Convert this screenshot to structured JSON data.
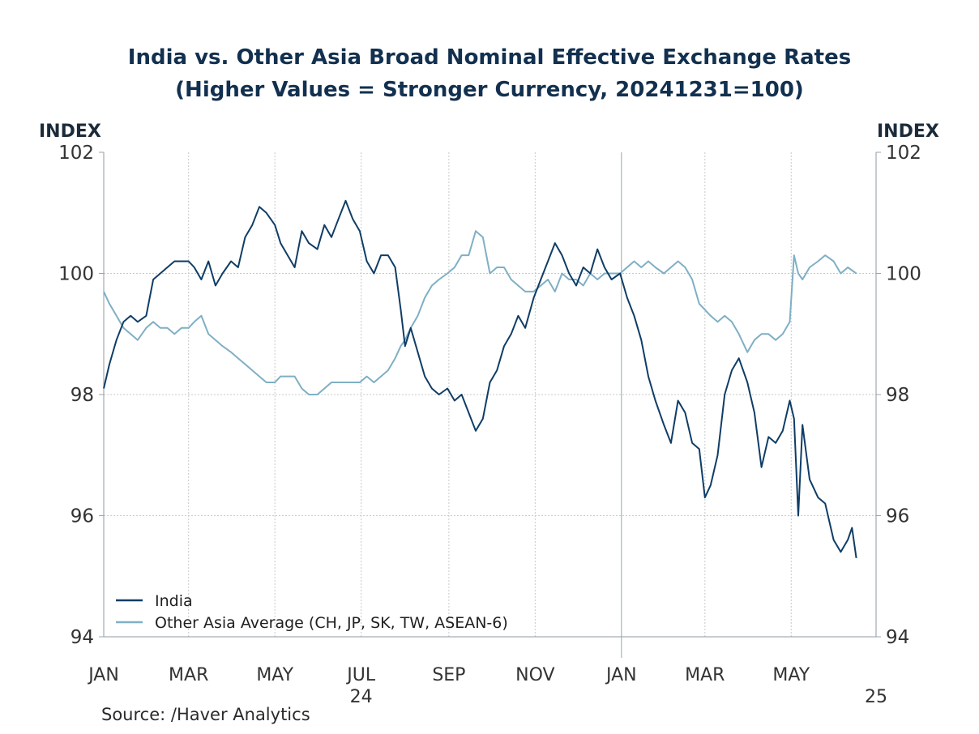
{
  "chart_data": {
    "type": "line",
    "title": "India vs. Other Asia Broad Nominal Effective Exchange Rates",
    "subtitle": "(Higher Values = Stronger Currency, 20241231=100)",
    "ylabel_left": "INDEX",
    "ylabel_right": "INDEX",
    "ylim": [
      94,
      102
    ],
    "y_ticks": [
      "94",
      "96",
      "98",
      "100",
      "102"
    ],
    "x_range": [
      "2024-01-01",
      "2025-06-30"
    ],
    "x_ticks": [
      {
        "date": "2024-01-01",
        "label": "JAN"
      },
      {
        "date": "2024-03-01",
        "label": "MAR"
      },
      {
        "date": "2024-05-01",
        "label": "MAY"
      },
      {
        "date": "2024-07-01",
        "label": "JUL"
      },
      {
        "date": "2024-09-01",
        "label": "SEP"
      },
      {
        "date": "2024-11-01",
        "label": "NOV"
      },
      {
        "date": "2025-01-01",
        "label": "JAN"
      },
      {
        "date": "2025-03-01",
        "label": "MAR"
      },
      {
        "date": "2025-05-01",
        "label": "MAY"
      }
    ],
    "year_labels": [
      {
        "date": "2024-07-01",
        "label": "24"
      },
      {
        "date": "2025-06-30",
        "label": "25"
      }
    ],
    "year_divider": "2025-01-01",
    "grid": true,
    "legend_position": "bottom-left",
    "series": [
      {
        "name": "India",
        "color": "#0f3d66",
        "points": [
          [
            "2024-01-01",
            98.1
          ],
          [
            "2024-01-05",
            98.5
          ],
          [
            "2024-01-10",
            98.9
          ],
          [
            "2024-01-15",
            99.2
          ],
          [
            "2024-01-20",
            99.3
          ],
          [
            "2024-01-25",
            99.2
          ],
          [
            "2024-01-31",
            99.3
          ],
          [
            "2024-02-05",
            99.9
          ],
          [
            "2024-02-10",
            100.0
          ],
          [
            "2024-02-15",
            100.1
          ],
          [
            "2024-02-20",
            100.2
          ],
          [
            "2024-02-25",
            100.2
          ],
          [
            "2024-03-01",
            100.2
          ],
          [
            "2024-03-05",
            100.1
          ],
          [
            "2024-03-10",
            99.9
          ],
          [
            "2024-03-15",
            100.2
          ],
          [
            "2024-03-20",
            99.8
          ],
          [
            "2024-03-25",
            100.0
          ],
          [
            "2024-03-31",
            100.2
          ],
          [
            "2024-04-05",
            100.1
          ],
          [
            "2024-04-10",
            100.6
          ],
          [
            "2024-04-15",
            100.8
          ],
          [
            "2024-04-20",
            101.1
          ],
          [
            "2024-04-25",
            101.0
          ],
          [
            "2024-05-01",
            100.8
          ],
          [
            "2024-05-05",
            100.5
          ],
          [
            "2024-05-10",
            100.3
          ],
          [
            "2024-05-15",
            100.1
          ],
          [
            "2024-05-20",
            100.7
          ],
          [
            "2024-05-25",
            100.5
          ],
          [
            "2024-05-31",
            100.4
          ],
          [
            "2024-06-05",
            100.8
          ],
          [
            "2024-06-10",
            100.6
          ],
          [
            "2024-06-15",
            100.9
          ],
          [
            "2024-06-20",
            101.2
          ],
          [
            "2024-06-25",
            100.9
          ],
          [
            "2024-06-30",
            100.7
          ],
          [
            "2024-07-05",
            100.2
          ],
          [
            "2024-07-10",
            100.0
          ],
          [
            "2024-07-15",
            100.3
          ],
          [
            "2024-07-20",
            100.3
          ],
          [
            "2024-07-25",
            100.1
          ],
          [
            "2024-07-29",
            99.4
          ],
          [
            "2024-08-01",
            98.8
          ],
          [
            "2024-08-05",
            99.1
          ],
          [
            "2024-08-10",
            98.7
          ],
          [
            "2024-08-15",
            98.3
          ],
          [
            "2024-08-20",
            98.1
          ],
          [
            "2024-08-25",
            98.0
          ],
          [
            "2024-08-31",
            98.1
          ],
          [
            "2024-09-05",
            97.9
          ],
          [
            "2024-09-10",
            98.0
          ],
          [
            "2024-09-15",
            97.7
          ],
          [
            "2024-09-20",
            97.4
          ],
          [
            "2024-09-25",
            97.6
          ],
          [
            "2024-09-30",
            98.2
          ],
          [
            "2024-10-05",
            98.4
          ],
          [
            "2024-10-10",
            98.8
          ],
          [
            "2024-10-15",
            99.0
          ],
          [
            "2024-10-20",
            99.3
          ],
          [
            "2024-10-25",
            99.1
          ],
          [
            "2024-10-31",
            99.6
          ],
          [
            "2024-11-05",
            99.9
          ],
          [
            "2024-11-10",
            100.2
          ],
          [
            "2024-11-15",
            100.5
          ],
          [
            "2024-11-20",
            100.3
          ],
          [
            "2024-11-25",
            100.0
          ],
          [
            "2024-11-30",
            99.8
          ],
          [
            "2024-12-05",
            100.1
          ],
          [
            "2024-12-10",
            100.0
          ],
          [
            "2024-12-15",
            100.4
          ],
          [
            "2024-12-20",
            100.1
          ],
          [
            "2024-12-25",
            99.9
          ],
          [
            "2024-12-31",
            100.0
          ],
          [
            "2025-01-05",
            99.6
          ],
          [
            "2025-01-10",
            99.3
          ],
          [
            "2025-01-15",
            98.9
          ],
          [
            "2025-01-20",
            98.3
          ],
          [
            "2025-01-25",
            97.9
          ],
          [
            "2025-01-31",
            97.5
          ],
          [
            "2025-02-05",
            97.2
          ],
          [
            "2025-02-10",
            97.9
          ],
          [
            "2025-02-15",
            97.7
          ],
          [
            "2025-02-20",
            97.2
          ],
          [
            "2025-02-25",
            97.1
          ],
          [
            "2025-03-01",
            96.3
          ],
          [
            "2025-03-05",
            96.5
          ],
          [
            "2025-03-10",
            97.0
          ],
          [
            "2025-03-15",
            98.0
          ],
          [
            "2025-03-20",
            98.4
          ],
          [
            "2025-03-25",
            98.6
          ],
          [
            "2025-03-31",
            98.2
          ],
          [
            "2025-04-05",
            97.7
          ],
          [
            "2025-04-10",
            96.8
          ],
          [
            "2025-04-15",
            97.3
          ],
          [
            "2025-04-20",
            97.2
          ],
          [
            "2025-04-25",
            97.4
          ],
          [
            "2025-04-30",
            97.9
          ],
          [
            "2025-05-03",
            97.6
          ],
          [
            "2025-05-06",
            96.0
          ],
          [
            "2025-05-09",
            97.5
          ],
          [
            "2025-05-14",
            96.6
          ],
          [
            "2025-05-20",
            96.3
          ],
          [
            "2025-05-25",
            96.2
          ],
          [
            "2025-05-31",
            95.6
          ],
          [
            "2025-06-05",
            95.4
          ],
          [
            "2025-06-10",
            95.6
          ],
          [
            "2025-06-13",
            95.8
          ],
          [
            "2025-06-16",
            95.3
          ]
        ]
      },
      {
        "name": "Other Asia Average (CH, JP, SK, TW, ASEAN-6)",
        "color": "#7fafc4",
        "points": [
          [
            "2024-01-01",
            99.7
          ],
          [
            "2024-01-05",
            99.5
          ],
          [
            "2024-01-10",
            99.3
          ],
          [
            "2024-01-15",
            99.1
          ],
          [
            "2024-01-20",
            99.0
          ],
          [
            "2024-01-25",
            98.9
          ],
          [
            "2024-01-31",
            99.1
          ],
          [
            "2024-02-05",
            99.2
          ],
          [
            "2024-02-10",
            99.1
          ],
          [
            "2024-02-15",
            99.1
          ],
          [
            "2024-02-20",
            99.0
          ],
          [
            "2024-02-25",
            99.1
          ],
          [
            "2024-03-01",
            99.1
          ],
          [
            "2024-03-05",
            99.2
          ],
          [
            "2024-03-10",
            99.3
          ],
          [
            "2024-03-15",
            99.0
          ],
          [
            "2024-03-20",
            98.9
          ],
          [
            "2024-03-25",
            98.8
          ],
          [
            "2024-03-31",
            98.7
          ],
          [
            "2024-04-05",
            98.6
          ],
          [
            "2024-04-10",
            98.5
          ],
          [
            "2024-04-15",
            98.4
          ],
          [
            "2024-04-20",
            98.3
          ],
          [
            "2024-04-25",
            98.2
          ],
          [
            "2024-05-01",
            98.2
          ],
          [
            "2024-05-05",
            98.3
          ],
          [
            "2024-05-10",
            98.3
          ],
          [
            "2024-05-15",
            98.3
          ],
          [
            "2024-05-20",
            98.1
          ],
          [
            "2024-05-25",
            98.0
          ],
          [
            "2024-05-31",
            98.0
          ],
          [
            "2024-06-05",
            98.1
          ],
          [
            "2024-06-10",
            98.2
          ],
          [
            "2024-06-15",
            98.2
          ],
          [
            "2024-06-20",
            98.2
          ],
          [
            "2024-06-25",
            98.2
          ],
          [
            "2024-06-30",
            98.2
          ],
          [
            "2024-07-05",
            98.3
          ],
          [
            "2024-07-10",
            98.2
          ],
          [
            "2024-07-15",
            98.3
          ],
          [
            "2024-07-20",
            98.4
          ],
          [
            "2024-07-25",
            98.6
          ],
          [
            "2024-07-29",
            98.8
          ],
          [
            "2024-08-01",
            98.9
          ],
          [
            "2024-08-05",
            99.1
          ],
          [
            "2024-08-10",
            99.3
          ],
          [
            "2024-08-15",
            99.6
          ],
          [
            "2024-08-20",
            99.8
          ],
          [
            "2024-08-25",
            99.9
          ],
          [
            "2024-08-31",
            100.0
          ],
          [
            "2024-09-05",
            100.1
          ],
          [
            "2024-09-10",
            100.3
          ],
          [
            "2024-09-15",
            100.3
          ],
          [
            "2024-09-20",
            100.7
          ],
          [
            "2024-09-25",
            100.6
          ],
          [
            "2024-09-30",
            100.0
          ],
          [
            "2024-10-05",
            100.1
          ],
          [
            "2024-10-10",
            100.1
          ],
          [
            "2024-10-15",
            99.9
          ],
          [
            "2024-10-20",
            99.8
          ],
          [
            "2024-10-25",
            99.7
          ],
          [
            "2024-10-31",
            99.7
          ],
          [
            "2024-11-05",
            99.8
          ],
          [
            "2024-11-10",
            99.9
          ],
          [
            "2024-11-15",
            99.7
          ],
          [
            "2024-11-20",
            100.0
          ],
          [
            "2024-11-25",
            99.9
          ],
          [
            "2024-11-30",
            99.9
          ],
          [
            "2024-12-05",
            99.8
          ],
          [
            "2024-12-10",
            100.0
          ],
          [
            "2024-12-15",
            99.9
          ],
          [
            "2024-12-20",
            100.0
          ],
          [
            "2024-12-25",
            100.0
          ],
          [
            "2024-12-31",
            100.0
          ],
          [
            "2025-01-05",
            100.1
          ],
          [
            "2025-01-10",
            100.2
          ],
          [
            "2025-01-15",
            100.1
          ],
          [
            "2025-01-20",
            100.2
          ],
          [
            "2025-01-25",
            100.1
          ],
          [
            "2025-01-31",
            100.0
          ],
          [
            "2025-02-05",
            100.1
          ],
          [
            "2025-02-10",
            100.2
          ],
          [
            "2025-02-15",
            100.1
          ],
          [
            "2025-02-20",
            99.9
          ],
          [
            "2025-02-25",
            99.5
          ],
          [
            "2025-03-01",
            99.4
          ],
          [
            "2025-03-05",
            99.3
          ],
          [
            "2025-03-10",
            99.2
          ],
          [
            "2025-03-15",
            99.3
          ],
          [
            "2025-03-20",
            99.2
          ],
          [
            "2025-03-25",
            99.0
          ],
          [
            "2025-03-31",
            98.7
          ],
          [
            "2025-04-05",
            98.9
          ],
          [
            "2025-04-10",
            99.0
          ],
          [
            "2025-04-15",
            99.0
          ],
          [
            "2025-04-20",
            98.9
          ],
          [
            "2025-04-25",
            99.0
          ],
          [
            "2025-04-30",
            99.2
          ],
          [
            "2025-05-03",
            100.3
          ],
          [
            "2025-05-06",
            100.0
          ],
          [
            "2025-05-09",
            99.9
          ],
          [
            "2025-05-14",
            100.1
          ],
          [
            "2025-05-20",
            100.2
          ],
          [
            "2025-05-25",
            100.3
          ],
          [
            "2025-05-31",
            100.2
          ],
          [
            "2025-06-05",
            100.0
          ],
          [
            "2025-06-10",
            100.1
          ],
          [
            "2025-06-16",
            100.0
          ]
        ]
      }
    ]
  },
  "source": "Source:  /Haver Analytics"
}
